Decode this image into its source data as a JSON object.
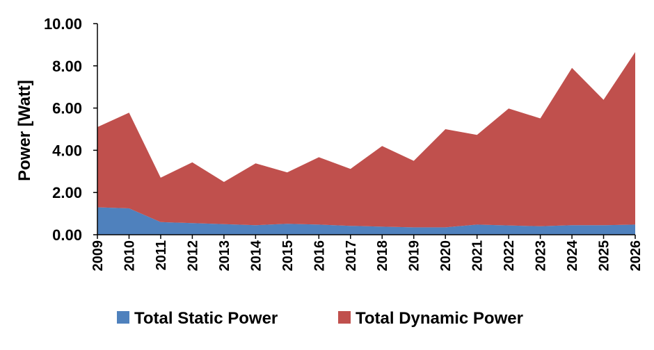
{
  "chart_data": {
    "type": "area",
    "stacked": true,
    "title": "",
    "xlabel": "",
    "ylabel": "Power [Watt]",
    "ylim": [
      0,
      10
    ],
    "yticks": [
      "0.00",
      "2.00",
      "4.00",
      "6.00",
      "8.00",
      "10.00"
    ],
    "x": [
      "2009",
      "2010",
      "2011",
      "2012",
      "2013",
      "2014",
      "2015",
      "2016",
      "2017",
      "2018",
      "2019",
      "2020",
      "2021",
      "2022",
      "2023",
      "2024",
      "2025",
      "2026"
    ],
    "series": [
      {
        "name": "Total Static Power",
        "color": "#4f81bd",
        "values": [
          1.3,
          1.25,
          0.6,
          0.55,
          0.5,
          0.45,
          0.52,
          0.48,
          0.42,
          0.38,
          0.35,
          0.35,
          0.48,
          0.44,
          0.4,
          0.45,
          0.45,
          0.48
        ]
      },
      {
        "name": "Total Dynamic Power",
        "color": "#c0504d",
        "values": [
          3.8,
          4.53,
          2.1,
          2.88,
          2.0,
          2.93,
          2.43,
          3.19,
          2.7,
          3.82,
          3.15,
          4.65,
          4.25,
          5.54,
          5.11,
          7.45,
          5.94,
          8.17
        ]
      }
    ],
    "grid": false,
    "legend": "bottom"
  }
}
